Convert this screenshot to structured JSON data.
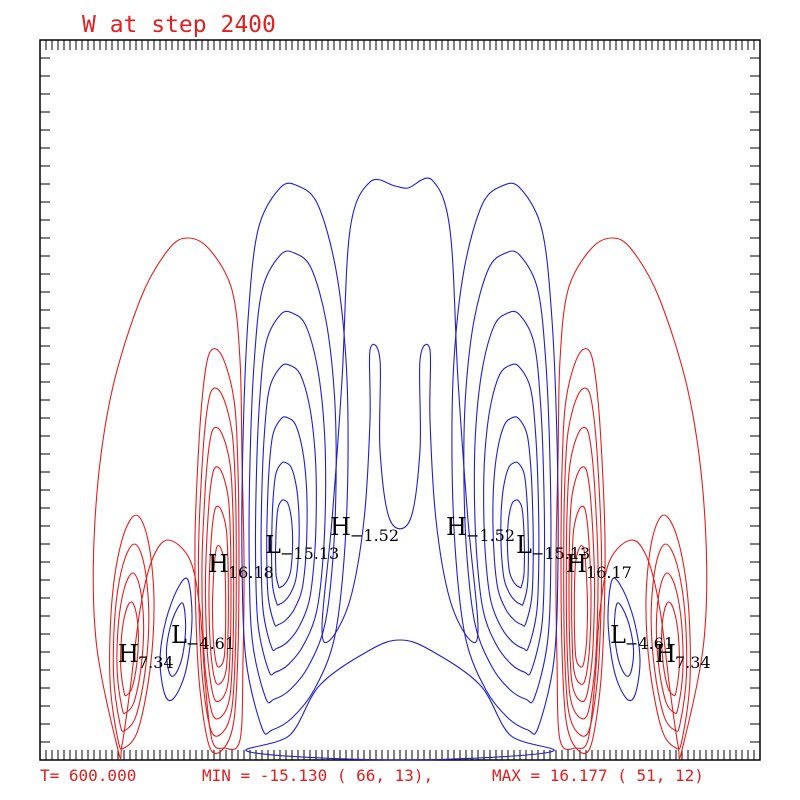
{
  "chart_data": {
    "type": "contour",
    "title": "W at step 2400",
    "footer": {
      "time": "T= 600.000",
      "min_text": "MIN = -15.130 (  66, 13),",
      "max_text": "MAX =  16.177 (  51, 12)"
    },
    "grid": {
      "nx": 120,
      "nz": 120
    },
    "colors": {
      "positive": "#e02020",
      "negative": "#2020c8",
      "text": "#e02020"
    },
    "min": -15.13,
    "max": 16.177,
    "extrema": [
      {
        "kind": "H",
        "value": "7.34"
      },
      {
        "kind": "L",
        "value": "−4.61"
      },
      {
        "kind": "H",
        "value": "16.18"
      },
      {
        "kind": "L",
        "value": "−15.13"
      },
      {
        "kind": "H",
        "value": "−1.52"
      },
      {
        "kind": "H",
        "value": "−1.52"
      },
      {
        "kind": "L",
        "value": "−15.13"
      },
      {
        "kind": "H",
        "value": "16.17"
      },
      {
        "kind": "L",
        "value": "−4.61"
      },
      {
        "kind": "H",
        "value": "7.34"
      }
    ]
  }
}
